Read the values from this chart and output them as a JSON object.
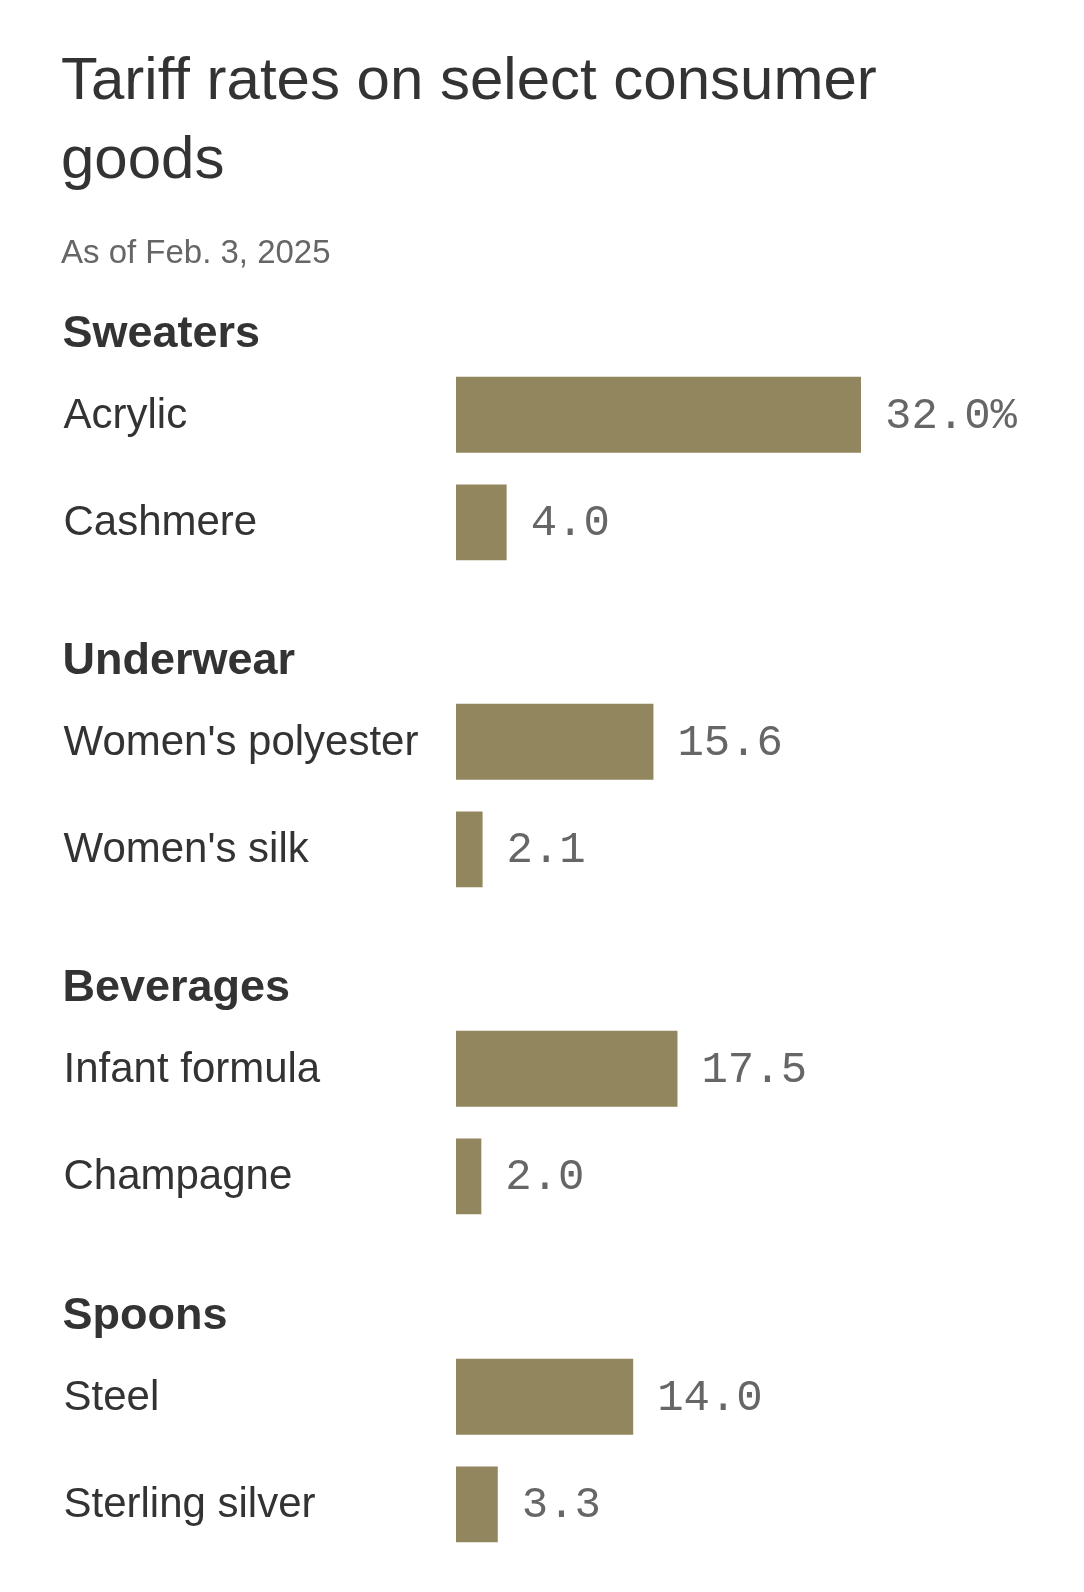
{
  "chart_data": [
    {
      "type": "bar",
      "orientation": "horizontal",
      "title": "Tariff rates on select consumer goods",
      "subtitle": "As of Feb. 3, 2025",
      "ylabel": "Sweaters",
      "categories": [
        "Acrylic",
        "Cashmere"
      ],
      "values": [
        32.0,
        4.0
      ],
      "value_labels": [
        "32.0%",
        "4.0"
      ],
      "color": "#91865e",
      "tick_labels": "y"
    },
    {
      "type": "bar",
      "orientation": "horizontal",
      "ylabel": "Underwear",
      "categories": [
        "Women's polyester",
        "Women's silk"
      ],
      "values": [
        15.6,
        2.1
      ],
      "value_labels": [
        "15.6",
        "2.1"
      ],
      "color": "#91865e",
      "tick_labels": "y"
    },
    {
      "type": "bar",
      "orientation": "horizontal",
      "ylabel": "Beverages",
      "categories": [
        "Infant formula",
        "Champagne"
      ],
      "values": [
        17.5,
        2.0
      ],
      "value_labels": [
        "17.5",
        "2.0"
      ],
      "color": "#91865e",
      "tick_labels": "y"
    },
    {
      "type": "bar",
      "orientation": "horizontal",
      "ylabel": "Spoons",
      "categories": [
        "Steel",
        "Sterling silver"
      ],
      "values": [
        14.0,
        3.3
      ],
      "value_labels": [
        "14.0",
        "3.3"
      ],
      "color": "#91865e",
      "tick_labels": "y"
    }
  ]
}
